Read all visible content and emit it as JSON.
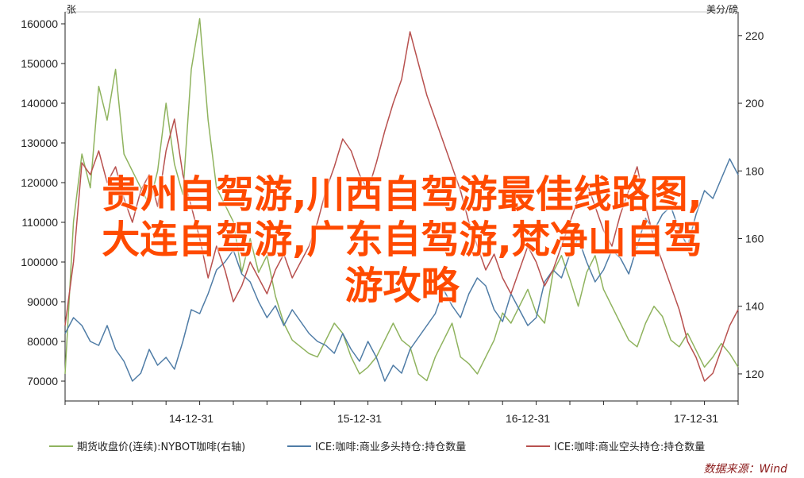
{
  "headline": {
    "line1": "贵州自驾游,川西自驾游最佳线路图,",
    "line2": "大连自驾游,广东自驾游,梵净山自驾",
    "line3": "游攻略"
  },
  "chart_data": {
    "type": "line",
    "left_axis_unit": "张",
    "right_axis_unit": "美分/磅",
    "left_ylim": [
      65000,
      163000
    ],
    "left_ticks": [
      "70000",
      "80000",
      "90000",
      "100000",
      "110000",
      "120000",
      "130000",
      "140000",
      "150000",
      "160000"
    ],
    "right_ylim": [
      112,
      227
    ],
    "right_ticks": [
      "120",
      "140",
      "160",
      "180",
      "200",
      "220"
    ],
    "x_ticks": [
      "14-12-31",
      "15-12-31",
      "16-12-31",
      "17-12-31"
    ],
    "series": [
      {
        "name": "期货收盘价(连续):NYBOT咖啡(右轴)",
        "axis": "right",
        "color": "#8fb35e",
        "x": [
          0,
          2,
          4,
          6,
          8,
          10,
          12,
          14,
          16,
          18,
          20,
          22,
          24,
          26,
          28,
          30,
          32,
          34,
          36,
          38,
          40,
          42,
          44,
          46,
          48,
          50,
          52,
          54,
          56,
          58,
          60,
          62,
          64,
          66,
          68,
          70,
          72,
          74,
          76,
          78,
          80,
          82,
          84,
          86,
          88,
          90,
          92,
          94,
          96,
          98,
          100,
          102,
          104,
          106,
          108,
          110,
          112,
          114,
          116,
          118,
          120,
          122,
          124,
          126,
          128,
          130,
          132,
          134,
          136,
          138,
          140,
          142,
          144,
          146,
          148,
          150,
          152,
          154,
          156,
          158,
          160
        ],
        "values": [
          120,
          165,
          185,
          175,
          205,
          195,
          210,
          185,
          180,
          175,
          170,
          180,
          200,
          182,
          173,
          210,
          225,
          195,
          175,
          170,
          165,
          150,
          160,
          150,
          155,
          143,
          135,
          130,
          128,
          126,
          125,
          130,
          135,
          132,
          125,
          120,
          122,
          125,
          130,
          135,
          130,
          128,
          120,
          118,
          125,
          130,
          135,
          125,
          123,
          120,
          125,
          130,
          138,
          135,
          140,
          145,
          138,
          135,
          150,
          155,
          148,
          140,
          150,
          155,
          145,
          140,
          135,
          130,
          128,
          135,
          140,
          137,
          130,
          128,
          132,
          127,
          122,
          125,
          129,
          126,
          122
        ]
      },
      {
        "name": "ICE:咖啡:商业多头持仓:持仓数量",
        "axis": "left",
        "color": "#4f7ca6",
        "x": [
          0,
          2,
          4,
          6,
          8,
          10,
          12,
          14,
          16,
          18,
          20,
          22,
          24,
          26,
          28,
          30,
          32,
          34,
          36,
          38,
          40,
          42,
          44,
          46,
          48,
          50,
          52,
          54,
          56,
          58,
          60,
          62,
          64,
          66,
          68,
          70,
          72,
          74,
          76,
          78,
          80,
          82,
          84,
          86,
          88,
          90,
          92,
          94,
          96,
          98,
          100,
          102,
          104,
          106,
          108,
          110,
          112,
          114,
          116,
          118,
          120,
          122,
          124,
          126,
          128,
          130,
          132,
          134,
          136,
          138,
          140,
          142,
          144,
          146,
          148,
          150,
          152,
          154,
          156,
          158,
          160
        ],
        "values": [
          82000,
          86000,
          84000,
          80000,
          79000,
          84000,
          78000,
          75000,
          70000,
          72000,
          78000,
          74000,
          76000,
          73000,
          80000,
          88000,
          87000,
          92000,
          98000,
          100000,
          103000,
          97000,
          95000,
          90000,
          86000,
          89000,
          84000,
          88000,
          85000,
          82000,
          80000,
          79000,
          77000,
          82000,
          78000,
          75000,
          80000,
          76000,
          70000,
          74000,
          72000,
          78000,
          81000,
          84000,
          87000,
          93000,
          89000,
          86000,
          92000,
          96000,
          94000,
          88000,
          85000,
          92000,
          88000,
          84000,
          86000,
          95000,
          98000,
          96000,
          102000,
          106000,
          100000,
          95000,
          98000,
          103000,
          101000,
          97000,
          104000,
          111000,
          108000,
          112000,
          114000,
          108000,
          104000,
          112000,
          118000,
          116000,
          121000,
          126000,
          122000
        ]
      },
      {
        "name": "ICE:咖啡:商业空头持仓:持仓数量",
        "axis": "left",
        "color": "#b8514f",
        "x": [
          0,
          2,
          4,
          6,
          8,
          10,
          12,
          14,
          16,
          18,
          20,
          22,
          24,
          26,
          28,
          30,
          32,
          34,
          36,
          38,
          40,
          42,
          44,
          46,
          48,
          50,
          52,
          54,
          56,
          58,
          60,
          62,
          64,
          66,
          68,
          70,
          72,
          74,
          76,
          78,
          80,
          82,
          84,
          86,
          88,
          90,
          92,
          94,
          96,
          98,
          100,
          102,
          104,
          106,
          108,
          110,
          112,
          114,
          116,
          118,
          120,
          122,
          124,
          126,
          128,
          130,
          132,
          134,
          136,
          138,
          140,
          142,
          144,
          146,
          148,
          150,
          152,
          154,
          156,
          158,
          160
        ],
        "values": [
          84000,
          100000,
          125000,
          122000,
          128000,
          120000,
          124000,
          116000,
          110000,
          118000,
          122000,
          114000,
          128000,
          136000,
          122000,
          114000,
          106000,
          96000,
          104000,
          98000,
          90000,
          94000,
          100000,
          96000,
          92000,
          98000,
          102000,
          96000,
          100000,
          104000,
          110000,
          118000,
          124000,
          131000,
          128000,
          122000,
          118000,
          125000,
          133000,
          140000,
          146000,
          158000,
          150000,
          142000,
          136000,
          130000,
          124000,
          118000,
          110000,
          104000,
          98000,
          102000,
          96000,
          92000,
          98000,
          104000,
          100000,
          94000,
          98000,
          104000,
          110000,
          116000,
          120000,
          114000,
          108000,
          104000,
          112000,
          118000,
          124000,
          114000,
          106000,
          100000,
          94000,
          88000,
          80000,
          76000,
          70000,
          72000,
          78000,
          84000,
          88000
        ]
      }
    ],
    "source": "数据来源：Wind"
  }
}
